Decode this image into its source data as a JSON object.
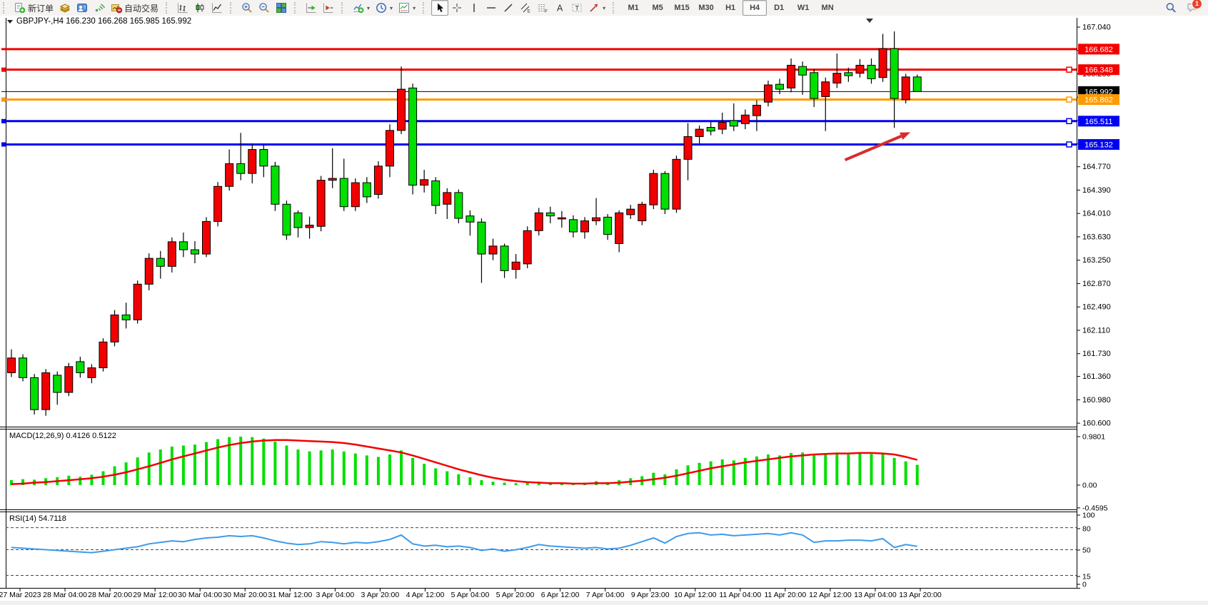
{
  "toolbar": {
    "groups": [
      {
        "buttons": [
          {
            "name": "new-order-button",
            "icon": "new-order-icon",
            "label": "新订单"
          },
          {
            "name": "new-chart-button",
            "icon": "new-chart-icon"
          },
          {
            "name": "metaeditor-button",
            "icon": "metaeditor-icon"
          },
          {
            "name": "signals-button",
            "icon": "signals-icon"
          },
          {
            "name": "autotrading-button",
            "icon": "autotrading-icon",
            "label": "自动交易"
          }
        ]
      },
      {
        "buttons": [
          {
            "name": "bar-chart-button",
            "icon": "bar-chart-icon"
          },
          {
            "name": "candlestick-chart-button",
            "icon": "candlestick-chart-icon"
          },
          {
            "name": "line-chart-button",
            "icon": "line-chart-icon"
          }
        ]
      },
      {
        "buttons": [
          {
            "name": "zoom-in-button",
            "icon": "zoom-in-icon"
          },
          {
            "name": "zoom-out-button",
            "icon": "zoom-out-icon"
          },
          {
            "name": "tile-windows-button",
            "icon": "tile-windows-icon"
          }
        ]
      },
      {
        "buttons": [
          {
            "name": "auto-scroll-button",
            "icon": "auto-scroll-icon"
          },
          {
            "name": "chart-shift-button",
            "icon": "chart-shift-icon"
          }
        ]
      },
      {
        "buttons": [
          {
            "name": "indicators-button",
            "icon": "indicators-icon",
            "caret": true
          },
          {
            "name": "periods-button",
            "icon": "periods-icon",
            "caret": true
          },
          {
            "name": "templates-button",
            "icon": "templates-icon",
            "caret": true
          }
        ]
      },
      {
        "buttons": [
          {
            "name": "cursor-button",
            "icon": "cursor-icon",
            "active": true
          },
          {
            "name": "crosshair-button",
            "icon": "crosshair-icon"
          },
          {
            "name": "vertical-line-button",
            "icon": "vertical-line-icon"
          },
          {
            "name": "horizontal-line-button",
            "icon": "horizontal-line-icon"
          },
          {
            "name": "trendline-button",
            "icon": "trendline-icon"
          },
          {
            "name": "equidistant-channel-button",
            "icon": "equidistant-channel-icon"
          },
          {
            "name": "fibonacci-button",
            "icon": "fibonacci-icon"
          },
          {
            "name": "text-button",
            "icon": "text-icon"
          },
          {
            "name": "label-button",
            "icon": "label-icon"
          },
          {
            "name": "arrows-button",
            "icon": "arrows-icon",
            "caret": true
          }
        ]
      }
    ],
    "timeframes": [
      "M1",
      "M5",
      "M15",
      "M30",
      "H1",
      "H4",
      "D1",
      "W1",
      "MN"
    ],
    "active_timeframe": "H4",
    "right": {
      "search_icon": "search-icon",
      "chat_icon": "chat-icon",
      "badge": "1"
    }
  },
  "header": {
    "symbol_title": "GBPJPY-,H4  166.230 166.268 165.985 165.992"
  },
  "indicators": {
    "macd_label": "MACD(12,26,9) 0.4126 0.5122",
    "rsi_label": "RSI(14) 54.7118"
  },
  "chart_data": {
    "type": "candlestick",
    "symbol": "GBPJPY-",
    "timeframe": "H4",
    "last_ohlc": {
      "open": 166.23,
      "high": 166.268,
      "low": 165.985,
      "close": 165.992
    },
    "price_axis_ticks": [
      "167.040",
      "166.660",
      "166.280",
      "165.900",
      "165.520",
      "165.140",
      "164.770",
      "164.390",
      "164.010",
      "163.630",
      "163.250",
      "162.870",
      "162.490",
      "162.110",
      "161.730",
      "161.360",
      "160.980",
      "160.600"
    ],
    "price_axis_range": [
      160.6,
      167.04
    ],
    "time_labels": [
      "27 Mar 2023",
      "28 Mar 04:00",
      "28 Mar 20:00",
      "29 Mar 12:00",
      "30 Mar 04:00",
      "30 Mar 20:00",
      "31 Mar 12:00",
      "3 Apr 04:00",
      "3 Apr 20:00",
      "4 Apr 12:00",
      "5 Apr 04:00",
      "5 Apr 20:00",
      "6 Apr 12:00",
      "7 Apr 04:00",
      "9 Apr 23:00",
      "10 Apr 12:00",
      "11 Apr 04:00",
      "11 Apr 20:00",
      "12 Apr 12:00",
      "13 Apr 04:00",
      "13 Apr 20:00"
    ],
    "hlines": [
      {
        "label": "166.682",
        "price": 166.682,
        "color": "#f40000",
        "width": 3,
        "marker": false
      },
      {
        "label": "166.348",
        "price": 166.348,
        "color": "#f40000",
        "width": 3,
        "marker": true
      },
      {
        "label": "165.992",
        "price": 165.992,
        "color": "#000000",
        "width": 1,
        "marker": false
      },
      {
        "label": "165.862",
        "price": 165.862,
        "color": "#ff9a00",
        "width": 3,
        "marker": true
      },
      {
        "label": "165.511",
        "price": 165.511,
        "color": "#0000f4",
        "width": 3,
        "marker": true
      },
      {
        "label": "165.132",
        "price": 165.132,
        "color": "#0000f4",
        "width": 3,
        "marker": true
      }
    ],
    "candles": [
      [
        161.42,
        161.8,
        161.35,
        161.66
      ],
      [
        161.66,
        161.72,
        161.28,
        161.34
      ],
      [
        161.34,
        161.4,
        160.74,
        160.82
      ],
      [
        160.82,
        161.48,
        160.72,
        161.42
      ],
      [
        161.38,
        161.44,
        160.9,
        161.1
      ],
      [
        161.1,
        161.58,
        161.04,
        161.52
      ],
      [
        161.6,
        161.68,
        161.34,
        161.42
      ],
      [
        161.34,
        161.56,
        161.25,
        161.5
      ],
      [
        161.5,
        161.98,
        161.44,
        161.92
      ],
      [
        161.92,
        162.44,
        161.85,
        162.36
      ],
      [
        162.36,
        162.56,
        162.14,
        162.28
      ],
      [
        162.28,
        162.92,
        162.22,
        162.86
      ],
      [
        162.86,
        163.36,
        162.76,
        163.28
      ],
      [
        163.28,
        163.4,
        162.95,
        163.15
      ],
      [
        163.15,
        163.62,
        163.05,
        163.55
      ],
      [
        163.55,
        163.7,
        163.3,
        163.42
      ],
      [
        163.42,
        163.56,
        163.2,
        163.35
      ],
      [
        163.35,
        163.95,
        163.3,
        163.88
      ],
      [
        163.88,
        164.52,
        163.8,
        164.45
      ],
      [
        164.45,
        165.05,
        164.38,
        164.82
      ],
      [
        164.82,
        165.32,
        164.55,
        164.66
      ],
      [
        164.66,
        165.15,
        164.5,
        165.05
      ],
      [
        165.05,
        165.12,
        164.6,
        164.78
      ],
      [
        164.78,
        164.85,
        164.05,
        164.16
      ],
      [
        164.16,
        164.22,
        163.58,
        163.66
      ],
      [
        164.02,
        164.06,
        163.62,
        163.78
      ],
      [
        163.78,
        163.96,
        163.6,
        163.82
      ],
      [
        163.8,
        164.62,
        163.72,
        164.55
      ],
      [
        164.55,
        165.07,
        164.42,
        164.58
      ],
      [
        164.58,
        164.9,
        164.05,
        164.12
      ],
      [
        164.12,
        164.58,
        164.05,
        164.51
      ],
      [
        164.51,
        164.6,
        164.18,
        164.28
      ],
      [
        164.32,
        164.86,
        164.25,
        164.78
      ],
      [
        164.78,
        165.46,
        164.6,
        165.36
      ],
      [
        165.36,
        166.4,
        165.3,
        166.03
      ],
      [
        166.05,
        166.12,
        164.32,
        164.47
      ],
      [
        164.47,
        164.72,
        164.35,
        164.56
      ],
      [
        164.54,
        164.6,
        164.0,
        164.14
      ],
      [
        164.16,
        164.42,
        163.92,
        164.35
      ],
      [
        164.35,
        164.4,
        163.85,
        163.93
      ],
      [
        163.97,
        164.06,
        163.65,
        163.87
      ],
      [
        163.87,
        163.93,
        162.88,
        163.35
      ],
      [
        163.35,
        163.6,
        163.25,
        163.48
      ],
      [
        163.48,
        163.52,
        162.96,
        163.08
      ],
      [
        163.1,
        163.35,
        162.95,
        163.22
      ],
      [
        163.19,
        163.8,
        163.12,
        163.73
      ],
      [
        163.73,
        164.1,
        163.65,
        164.02
      ],
      [
        164.02,
        164.12,
        163.85,
        163.97
      ],
      [
        163.92,
        164.05,
        163.78,
        163.94
      ],
      [
        163.91,
        163.98,
        163.62,
        163.71
      ],
      [
        163.71,
        163.95,
        163.6,
        163.89
      ],
      [
        163.89,
        164.26,
        163.82,
        163.94
      ],
      [
        163.95,
        164.0,
        163.58,
        163.67
      ],
      [
        163.52,
        164.06,
        163.38,
        164.02
      ],
      [
        163.99,
        164.15,
        163.92,
        164.08
      ],
      [
        163.89,
        164.2,
        163.82,
        164.16
      ],
      [
        164.15,
        164.72,
        164.08,
        164.66
      ],
      [
        164.66,
        164.7,
        164.0,
        164.08
      ],
      [
        164.08,
        164.95,
        164.02,
        164.89
      ],
      [
        164.89,
        165.48,
        164.55,
        165.26
      ],
      [
        165.26,
        165.44,
        165.15,
        165.38
      ],
      [
        165.41,
        165.5,
        165.28,
        165.35
      ],
      [
        165.38,
        165.65,
        165.3,
        165.49
      ],
      [
        165.52,
        165.8,
        165.35,
        165.43
      ],
      [
        165.47,
        165.7,
        165.38,
        165.61
      ],
      [
        165.6,
        165.85,
        165.35,
        165.77
      ],
      [
        165.82,
        166.17,
        165.75,
        166.1
      ],
      [
        166.11,
        166.2,
        165.95,
        166.03
      ],
      [
        166.05,
        166.53,
        165.98,
        166.42
      ],
      [
        166.4,
        166.48,
        165.94,
        166.26
      ],
      [
        166.3,
        166.36,
        165.74,
        165.88
      ],
      [
        165.91,
        166.22,
        165.35,
        166.15
      ],
      [
        166.13,
        166.61,
        166.05,
        166.29
      ],
      [
        166.3,
        166.38,
        166.15,
        166.25
      ],
      [
        166.29,
        166.52,
        166.22,
        166.42
      ],
      [
        166.42,
        166.53,
        166.12,
        166.2
      ],
      [
        166.22,
        166.93,
        166.15,
        166.69
      ],
      [
        166.69,
        166.97,
        165.4,
        165.88
      ],
      [
        165.86,
        166.28,
        165.8,
        166.23
      ],
      [
        166.23,
        166.268,
        165.985,
        165.992
      ]
    ],
    "macd": {
      "name": "MACD(12,26,9)",
      "current_main": 0.4126,
      "current_signal": 0.5122,
      "axis_ticks": [
        "0.9801",
        "0.00",
        "-0.4595"
      ],
      "axis_values": [
        0.9801,
        0.0,
        -0.4595
      ],
      "histogram": [
        0.1,
        0.12,
        0.11,
        0.14,
        0.16,
        0.19,
        0.17,
        0.21,
        0.28,
        0.38,
        0.46,
        0.56,
        0.66,
        0.72,
        0.78,
        0.8,
        0.82,
        0.87,
        0.93,
        0.97,
        0.98,
        0.97,
        0.94,
        0.88,
        0.8,
        0.72,
        0.68,
        0.7,
        0.72,
        0.68,
        0.64,
        0.6,
        0.57,
        0.62,
        0.7,
        0.55,
        0.43,
        0.34,
        0.28,
        0.22,
        0.16,
        0.1,
        0.07,
        0.05,
        0.04,
        0.05,
        0.07,
        0.06,
        0.05,
        0.04,
        0.05,
        0.08,
        0.06,
        0.1,
        0.14,
        0.18,
        0.25,
        0.22,
        0.32,
        0.4,
        0.45,
        0.48,
        0.52,
        0.5,
        0.55,
        0.58,
        0.62,
        0.6,
        0.65,
        0.66,
        0.62,
        0.64,
        0.66,
        0.62,
        0.64,
        0.63,
        0.65,
        0.55,
        0.48,
        0.41
      ],
      "signal": [
        0.02,
        0.03,
        0.05,
        0.06,
        0.08,
        0.1,
        0.12,
        0.14,
        0.17,
        0.21,
        0.26,
        0.32,
        0.38,
        0.45,
        0.52,
        0.58,
        0.64,
        0.7,
        0.76,
        0.81,
        0.85,
        0.88,
        0.9,
        0.91,
        0.91,
        0.9,
        0.89,
        0.88,
        0.87,
        0.85,
        0.82,
        0.78,
        0.74,
        0.7,
        0.66,
        0.6,
        0.53,
        0.46,
        0.39,
        0.32,
        0.26,
        0.2,
        0.15,
        0.11,
        0.08,
        0.06,
        0.05,
        0.04,
        0.04,
        0.03,
        0.03,
        0.04,
        0.04,
        0.05,
        0.07,
        0.09,
        0.12,
        0.15,
        0.19,
        0.24,
        0.29,
        0.34,
        0.38,
        0.42,
        0.46,
        0.49,
        0.52,
        0.55,
        0.58,
        0.6,
        0.62,
        0.63,
        0.64,
        0.64,
        0.65,
        0.65,
        0.64,
        0.62,
        0.57,
        0.51
      ]
    },
    "rsi": {
      "name": "RSI(14)",
      "current": 54.7118,
      "axis_ticks": [
        "100",
        "80",
        "50",
        "15",
        "0"
      ],
      "levels": [
        80,
        50,
        15
      ],
      "values": [
        53,
        52,
        51,
        50,
        49,
        48,
        47,
        46,
        48,
        50,
        52,
        54,
        58,
        60,
        62,
        61,
        64,
        66,
        67,
        69,
        68,
        69,
        66,
        62,
        59,
        57,
        58,
        61,
        60,
        58,
        60,
        59,
        61,
        64,
        70,
        58,
        55,
        56,
        54,
        55,
        53,
        49,
        51,
        48,
        50,
        53,
        57,
        55,
        54,
        53,
        52,
        53,
        51,
        52,
        56,
        61,
        66,
        59,
        68,
        72,
        73,
        70,
        71,
        69,
        70,
        71,
        72,
        70,
        73,
        70,
        60,
        62,
        62,
        63,
        63,
        62,
        65,
        53,
        57,
        54.7
      ]
    },
    "annotation_arrow": {
      "from_bar": 72.7,
      "from_price": 164.88,
      "to_bar": 78.4,
      "to_price": 165.33,
      "color": "#d92b2b"
    }
  },
  "colors": {
    "bull_candle": "#f20000",
    "bear_candle": "#00df00",
    "candle_outline": "#000000",
    "macd_histogram": "#00df00",
    "macd_signal": "#f40000",
    "rsi_line": "#3e9bea",
    "chart_bg": "#ffffff",
    "axis_text": "#000000"
  }
}
